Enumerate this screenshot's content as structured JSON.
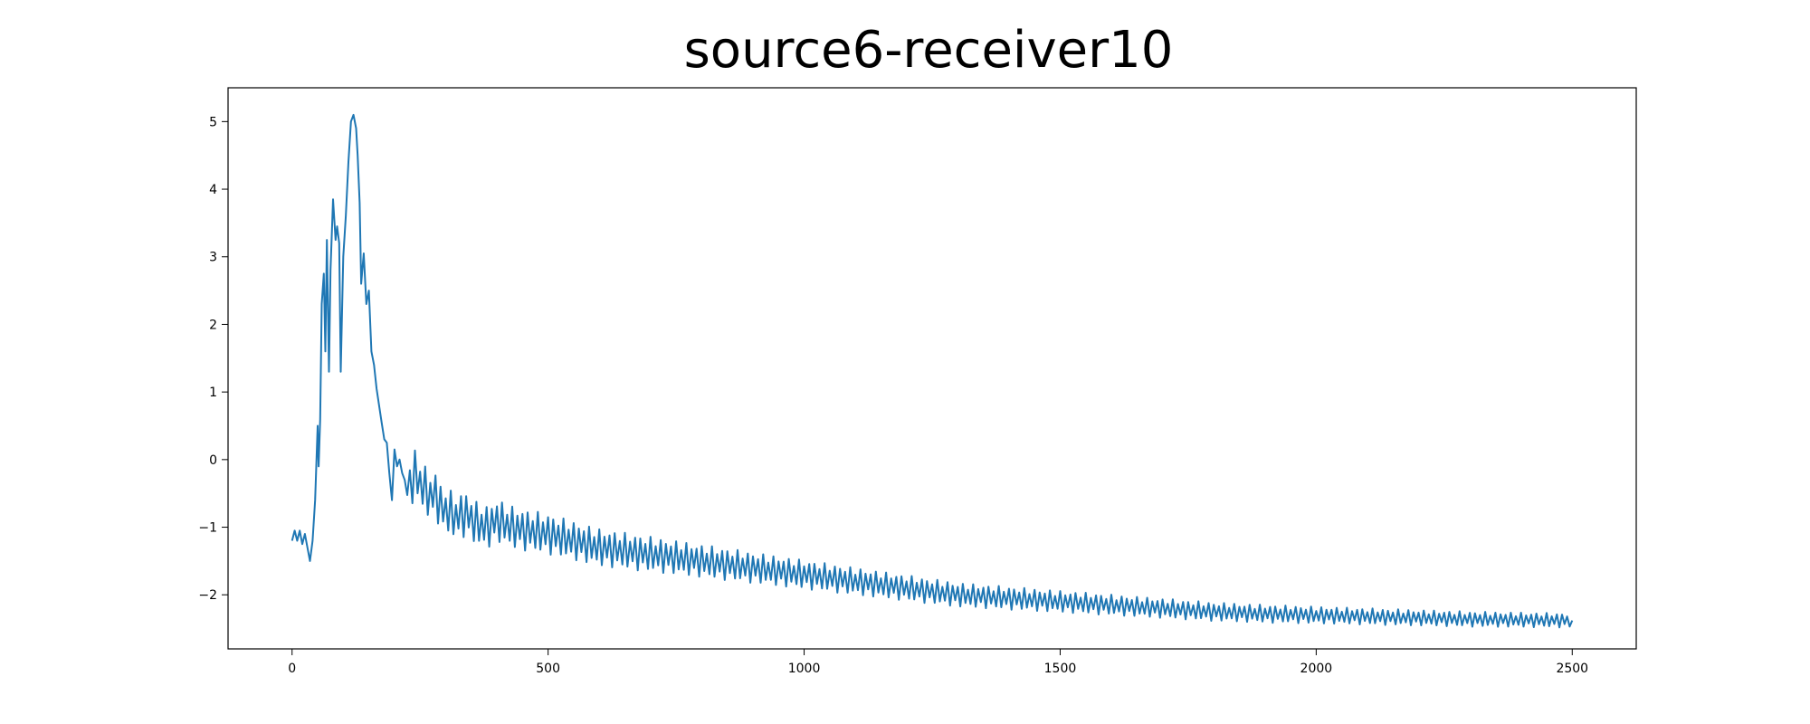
{
  "chart_data": {
    "type": "line",
    "title": "source6-receiver10",
    "xlabel": "",
    "ylabel": "",
    "xlim": [
      -125,
      2625
    ],
    "ylim": [
      -2.8,
      5.5
    ],
    "grid": false,
    "legend": "none",
    "x_ticks": [
      0,
      500,
      1000,
      1500,
      2000,
      2500
    ],
    "y_ticks": [
      -2,
      -1,
      0,
      1,
      2,
      3,
      4,
      5
    ],
    "x_tick_labels": [
      "0",
      "500",
      "1000",
      "1500",
      "2000",
      "2500"
    ],
    "y_tick_labels": [
      "−2",
      "−1",
      "0",
      "1",
      "2",
      "3",
      "4",
      "5"
    ],
    "line_color": "#1f77b4",
    "series": [
      {
        "x": [
          0,
          5,
          10,
          15,
          20,
          25,
          30,
          35,
          40,
          45,
          50,
          52,
          55,
          58,
          62,
          65,
          68,
          72,
          75,
          80,
          85,
          88,
          92,
          95,
          100,
          105,
          110,
          115,
          120,
          125,
          128,
          132,
          135,
          140,
          145,
          150,
          155,
          160,
          165,
          170,
          175,
          180,
          185,
          190,
          195,
          200,
          205,
          210,
          215,
          220,
          230,
          240,
          250,
          260,
          270,
          280,
          290,
          300,
          320,
          340,
          360,
          380,
          400,
          430,
          460,
          500,
          550,
          600,
          650,
          700,
          750,
          800,
          850,
          900,
          950,
          1000,
          1050,
          1100,
          1150,
          1200,
          1300,
          1400,
          1500,
          1600,
          1700,
          1800,
          1900,
          2000,
          2100,
          2200,
          2300,
          2400,
          2500
        ],
        "y": [
          -1.2,
          -1.05,
          -1.2,
          -1.05,
          -1.25,
          -1.1,
          -1.3,
          -1.5,
          -1.2,
          -0.6,
          0.5,
          -0.1,
          0.6,
          2.3,
          2.75,
          1.6,
          3.25,
          1.3,
          2.8,
          3.85,
          3.25,
          3.45,
          3.2,
          1.3,
          3.0,
          3.6,
          4.4,
          5.0,
          5.1,
          4.9,
          4.5,
          3.8,
          2.6,
          3.05,
          2.3,
          2.5,
          1.6,
          1.4,
          1.05,
          0.8,
          0.55,
          0.3,
          0.25,
          -0.2,
          -0.6,
          0.15,
          -0.1,
          0.0,
          -0.2,
          -0.3,
          -0.4,
          -0.2,
          -0.35,
          -0.45,
          -0.55,
          -0.5,
          -0.7,
          -0.75,
          -0.85,
          -0.8,
          -0.95,
          -1.0,
          -0.9,
          -1.0,
          -1.05,
          -1.1,
          -1.2,
          -1.3,
          -1.35,
          -1.4,
          -1.45,
          -1.5,
          -1.55,
          -1.6,
          -1.65,
          -1.7,
          -1.75,
          -1.8,
          -1.85,
          -1.9,
          -2.0,
          -2.05,
          -2.1,
          -2.15,
          -2.2,
          -2.25,
          -2.28,
          -2.3,
          -2.32,
          -2.34,
          -2.36,
          -2.37,
          -2.38
        ]
      }
    ]
  }
}
